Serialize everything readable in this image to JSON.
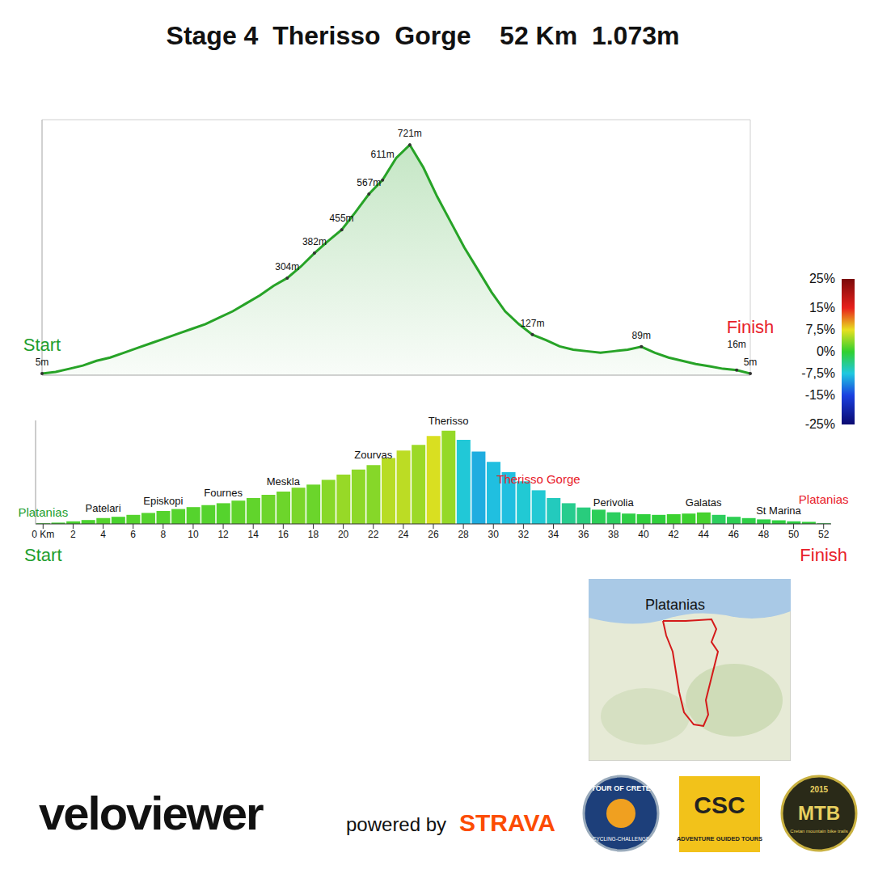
{
  "title": "Stage 4  Therisso  Gorge    52 Km  1.073m",
  "chart_data": [
    {
      "type": "area",
      "x": [
        0,
        1,
        2,
        3,
        4,
        5,
        6,
        7,
        8,
        9,
        10,
        11,
        12,
        13,
        14,
        15,
        16,
        17,
        18,
        19,
        20,
        21,
        22,
        23,
        24,
        25,
        26,
        27,
        28,
        29,
        30,
        31,
        32,
        33,
        34,
        35,
        36,
        37,
        38,
        39,
        40,
        41,
        42,
        43,
        44,
        45,
        46,
        47,
        48,
        49,
        50,
        51,
        52
      ],
      "values": [
        5,
        10,
        20,
        30,
        45,
        55,
        70,
        85,
        100,
        115,
        130,
        145,
        160,
        180,
        200,
        225,
        250,
        280,
        304,
        340,
        382,
        420,
        455,
        510,
        567,
        611,
        680,
        721,
        650,
        560,
        480,
        400,
        330,
        260,
        200,
        160,
        127,
        110,
        90,
        80,
        75,
        70,
        75,
        80,
        89,
        70,
        55,
        45,
        35,
        28,
        20,
        16,
        5
      ],
      "xlim": [
        0,
        52
      ],
      "xticks": [
        0,
        4,
        8,
        12,
        16,
        20,
        24,
        28,
        32,
        36,
        40,
        44,
        48,
        52
      ],
      "ylim": [
        0,
        800
      ],
      "yticks": [
        0,
        100,
        200,
        300,
        400,
        500,
        600,
        700,
        800
      ],
      "grid": true,
      "tick_labels": false,
      "color": "#27a327",
      "annotations": [
        {
          "x": 0,
          "y": 5,
          "label": "5m"
        },
        {
          "x": 52,
          "y": 5,
          "label": "5m"
        },
        {
          "x": 51,
          "y": 16,
          "label": "16m"
        },
        {
          "x": 44,
          "y": 89,
          "label": "89m"
        },
        {
          "x": 36,
          "y": 127,
          "label": "127m"
        },
        {
          "x": 18,
          "y": 304,
          "label": "304m"
        },
        {
          "x": 20,
          "y": 382,
          "label": "382m"
        },
        {
          "x": 22,
          "y": 455,
          "label": "455m"
        },
        {
          "x": 24,
          "y": 567,
          "label": "567m"
        },
        {
          "x": 25,
          "y": 611,
          "label": "611m"
        },
        {
          "x": 27,
          "y": 721,
          "label": "721m"
        }
      ],
      "markers": {
        "start": {
          "label": "Start",
          "color": "#1e9e2e"
        },
        "finish": {
          "label": "Finish",
          "color": "#e8202a"
        }
      },
      "colorbar": {
        "range": [
          -25,
          25
        ],
        "ticks": [
          {
            "value": 25,
            "label": "25%"
          },
          {
            "value": 15,
            "label": "15%"
          },
          {
            "value": 7.5,
            "label": "7,5%"
          },
          {
            "value": 0,
            "label": "0%"
          },
          {
            "value": -7.5,
            "label": "-7,5%"
          },
          {
            "value": -15,
            "label": "-15%"
          },
          {
            "value": -25,
            "label": "-25%"
          }
        ],
        "colors": [
          "#7a0a0a",
          "#e8201c",
          "#e8e020",
          "#30d030",
          "#20c8e0",
          "#1a40e0",
          "#0a0a70"
        ]
      }
    },
    {
      "type": "bar",
      "x": [
        0,
        1,
        2,
        3,
        4,
        5,
        6,
        7,
        8,
        9,
        10,
        11,
        12,
        13,
        14,
        15,
        16,
        17,
        18,
        19,
        20,
        21,
        22,
        23,
        24,
        25,
        26,
        27,
        28,
        29,
        30,
        31,
        32,
        33,
        34,
        35,
        36,
        37,
        38,
        39,
        40,
        41,
        42,
        43,
        44,
        45,
        46,
        47,
        48,
        49,
        50,
        51,
        52
      ],
      "values": [
        5,
        10,
        20,
        30,
        45,
        55,
        70,
        85,
        100,
        115,
        130,
        145,
        160,
        180,
        200,
        225,
        250,
        280,
        304,
        340,
        382,
        420,
        455,
        510,
        567,
        611,
        680,
        721,
        650,
        560,
        480,
        400,
        330,
        260,
        200,
        160,
        127,
        110,
        90,
        80,
        75,
        70,
        75,
        80,
        89,
        70,
        55,
        45,
        35,
        28,
        20,
        16,
        5
      ],
      "xlim": [
        -0.5,
        52.5
      ],
      "xticks": [
        {
          "value": 0,
          "label": "0 Km"
        },
        2,
        4,
        6,
        8,
        10,
        12,
        14,
        16,
        18,
        20,
        22,
        24,
        26,
        28,
        30,
        32,
        34,
        36,
        38,
        40,
        42,
        44,
        46,
        48,
        50,
        52
      ],
      "ylim": [
        0,
        800
      ],
      "grid": false,
      "tick_labels": "x",
      "places": [
        {
          "x": 0,
          "label": "Platanias",
          "color": "#1e9e2e"
        },
        {
          "x": 4,
          "label": "Patelari"
        },
        {
          "x": 8,
          "label": "Episkopi"
        },
        {
          "x": 12,
          "label": "Fournes"
        },
        {
          "x": 16,
          "label": "Meskla"
        },
        {
          "x": 22,
          "label": "Zourvas"
        },
        {
          "x": 27,
          "label": "Therisso"
        },
        {
          "x": 33,
          "label": "Therisso Gorge",
          "color": "#e8202a"
        },
        {
          "x": 38,
          "label": "Perivolia"
        },
        {
          "x": 44,
          "label": "Galatas"
        },
        {
          "x": 49,
          "label": "St Marina"
        },
        {
          "x": 52,
          "label": "Platanias",
          "color": "#e8202a"
        }
      ],
      "markers": {
        "start": {
          "label": "Start",
          "color": "#1e9e2e"
        },
        "finish": {
          "label": "Finish",
          "color": "#e8202a"
        }
      }
    }
  ],
  "map": {
    "label": "Platanias"
  },
  "footer": {
    "brand": "veloviewer",
    "powered_by": "powered by",
    "strava": "STRAVA",
    "logos": [
      {
        "title": "TOUR OF CRETE",
        "subtitle": "CYCLING-CHALLENGE"
      },
      {
        "title": "CSC",
        "subtitle": "ADVENTURE GUIDED TOURS"
      },
      {
        "title": "MTB",
        "year": "2015",
        "subtitle": "Cretan mountain bike trails"
      }
    ]
  }
}
